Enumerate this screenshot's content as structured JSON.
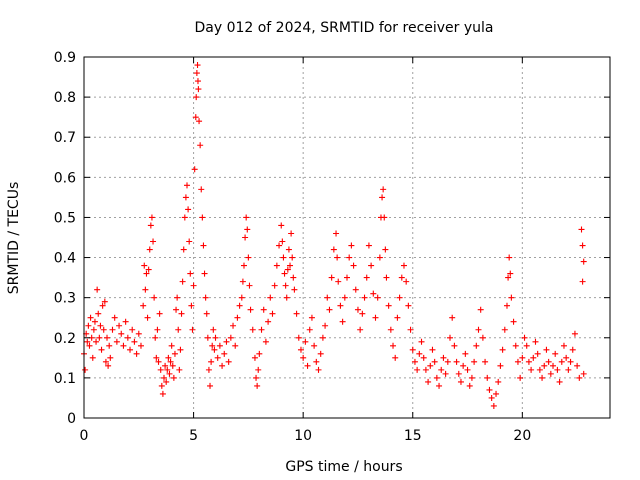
{
  "chart_data": {
    "type": "scatter",
    "title": "Day 012 of 2024, SRMTID for receiver yula",
    "xlabel": "GPS time / hours",
    "ylabel": "SRMTID / TECUs",
    "xlim": [
      0,
      24
    ],
    "ylim": [
      0,
      0.9
    ],
    "xticks": [
      "0",
      "5",
      "10",
      "15",
      "20"
    ],
    "yticks": [
      "0",
      "0.1",
      "0.2",
      "0.3",
      "0.4",
      "0.5",
      "0.6",
      "0.7",
      "0.8",
      "0.9"
    ],
    "grid": true,
    "marker": "plus",
    "color": "#ff0000",
    "series": [
      {
        "name": "SRMTID",
        "points": [
          [
            0.0,
            0.16
          ],
          [
            0.05,
            0.12
          ],
          [
            0.1,
            0.21
          ],
          [
            0.15,
            0.19
          ],
          [
            0.2,
            0.23
          ],
          [
            0.25,
            0.18
          ],
          [
            0.3,
            0.25
          ],
          [
            0.35,
            0.2
          ],
          [
            0.4,
            0.15
          ],
          [
            0.45,
            0.22
          ],
          [
            0.5,
            0.24
          ],
          [
            0.55,
            0.19
          ],
          [
            0.6,
            0.32
          ],
          [
            0.65,
            0.26
          ],
          [
            0.7,
            0.2
          ],
          [
            0.75,
            0.23
          ],
          [
            0.8,
            0.17
          ],
          [
            0.85,
            0.28
          ],
          [
            0.9,
            0.22
          ],
          [
            0.95,
            0.29
          ],
          [
            1.0,
            0.14
          ],
          [
            1.05,
            0.2
          ],
          [
            1.1,
            0.13
          ],
          [
            1.15,
            0.18
          ],
          [
            1.2,
            0.15
          ],
          [
            1.3,
            0.22
          ],
          [
            1.4,
            0.25
          ],
          [
            1.5,
            0.19
          ],
          [
            1.6,
            0.23
          ],
          [
            1.7,
            0.21
          ],
          [
            1.8,
            0.18
          ],
          [
            1.9,
            0.24
          ],
          [
            2.0,
            0.2
          ],
          [
            2.1,
            0.17
          ],
          [
            2.2,
            0.22
          ],
          [
            2.3,
            0.19
          ],
          [
            2.4,
            0.16
          ],
          [
            2.5,
            0.21
          ],
          [
            2.6,
            0.18
          ],
          [
            2.7,
            0.28
          ],
          [
            2.75,
            0.38
          ],
          [
            2.8,
            0.32
          ],
          [
            2.85,
            0.36
          ],
          [
            2.9,
            0.25
          ],
          [
            2.95,
            0.37
          ],
          [
            3.0,
            0.42
          ],
          [
            3.05,
            0.48
          ],
          [
            3.1,
            0.5
          ],
          [
            3.15,
            0.44
          ],
          [
            3.2,
            0.3
          ],
          [
            3.25,
            0.2
          ],
          [
            3.3,
            0.15
          ],
          [
            3.35,
            0.22
          ],
          [
            3.4,
            0.14
          ],
          [
            3.45,
            0.26
          ],
          [
            3.5,
            0.12
          ],
          [
            3.55,
            0.08
          ],
          [
            3.6,
            0.06
          ],
          [
            3.65,
            0.1
          ],
          [
            3.7,
            0.13
          ],
          [
            3.75,
            0.09
          ],
          [
            3.8,
            0.12
          ],
          [
            3.85,
            0.15
          ],
          [
            3.9,
            0.11
          ],
          [
            3.95,
            0.14
          ],
          [
            4.0,
            0.18
          ],
          [
            4.05,
            0.13
          ],
          [
            4.1,
            0.1
          ],
          [
            4.15,
            0.16
          ],
          [
            4.2,
            0.27
          ],
          [
            4.25,
            0.3
          ],
          [
            4.3,
            0.22
          ],
          [
            4.35,
            0.12
          ],
          [
            4.4,
            0.17
          ],
          [
            4.45,
            0.26
          ],
          [
            4.5,
            0.34
          ],
          [
            4.55,
            0.42
          ],
          [
            4.6,
            0.5
          ],
          [
            4.65,
            0.55
          ],
          [
            4.7,
            0.58
          ],
          [
            4.75,
            0.52
          ],
          [
            4.8,
            0.44
          ],
          [
            4.85,
            0.36
          ],
          [
            4.9,
            0.28
          ],
          [
            4.95,
            0.22
          ],
          [
            5.0,
            0.33
          ],
          [
            5.05,
            0.62
          ],
          [
            5.1,
            0.75
          ],
          [
            5.12,
            0.8
          ],
          [
            5.15,
            0.86
          ],
          [
            5.18,
            0.88
          ],
          [
            5.2,
            0.84
          ],
          [
            5.22,
            0.82
          ],
          [
            5.25,
            0.74
          ],
          [
            5.3,
            0.68
          ],
          [
            5.35,
            0.57
          ],
          [
            5.4,
            0.5
          ],
          [
            5.45,
            0.43
          ],
          [
            5.5,
            0.36
          ],
          [
            5.55,
            0.3
          ],
          [
            5.6,
            0.26
          ],
          [
            5.65,
            0.2
          ],
          [
            5.7,
            0.12
          ],
          [
            5.75,
            0.08
          ],
          [
            5.8,
            0.14
          ],
          [
            5.85,
            0.18
          ],
          [
            5.9,
            0.22
          ],
          [
            5.95,
            0.17
          ],
          [
            6.0,
            0.2
          ],
          [
            6.1,
            0.15
          ],
          [
            6.2,
            0.18
          ],
          [
            6.3,
            0.13
          ],
          [
            6.4,
            0.16
          ],
          [
            6.5,
            0.19
          ],
          [
            6.6,
            0.14
          ],
          [
            6.7,
            0.2
          ],
          [
            6.8,
            0.23
          ],
          [
            6.9,
            0.18
          ],
          [
            7.0,
            0.25
          ],
          [
            7.1,
            0.28
          ],
          [
            7.2,
            0.3
          ],
          [
            7.25,
            0.34
          ],
          [
            7.3,
            0.38
          ],
          [
            7.35,
            0.45
          ],
          [
            7.4,
            0.5
          ],
          [
            7.45,
            0.47
          ],
          [
            7.5,
            0.4
          ],
          [
            7.55,
            0.33
          ],
          [
            7.6,
            0.27
          ],
          [
            7.7,
            0.22
          ],
          [
            7.8,
            0.15
          ],
          [
            7.85,
            0.1
          ],
          [
            7.9,
            0.08
          ],
          [
            7.95,
            0.12
          ],
          [
            8.0,
            0.16
          ],
          [
            8.1,
            0.22
          ],
          [
            8.2,
            0.27
          ],
          [
            8.3,
            0.19
          ],
          [
            8.4,
            0.24
          ],
          [
            8.5,
            0.3
          ],
          [
            8.6,
            0.26
          ],
          [
            8.7,
            0.33
          ],
          [
            8.8,
            0.38
          ],
          [
            8.9,
            0.43
          ],
          [
            9.0,
            0.48
          ],
          [
            9.05,
            0.44
          ],
          [
            9.1,
            0.4
          ],
          [
            9.15,
            0.36
          ],
          [
            9.2,
            0.33
          ],
          [
            9.25,
            0.3
          ],
          [
            9.3,
            0.37
          ],
          [
            9.35,
            0.42
          ],
          [
            9.4,
            0.38
          ],
          [
            9.45,
            0.46
          ],
          [
            9.5,
            0.4
          ],
          [
            9.55,
            0.35
          ],
          [
            9.6,
            0.32
          ],
          [
            9.7,
            0.26
          ],
          [
            9.8,
            0.2
          ],
          [
            9.9,
            0.17
          ],
          [
            10.0,
            0.15
          ],
          [
            10.1,
            0.19
          ],
          [
            10.2,
            0.13
          ],
          [
            10.3,
            0.22
          ],
          [
            10.4,
            0.25
          ],
          [
            10.5,
            0.18
          ],
          [
            10.6,
            0.14
          ],
          [
            10.7,
            0.12
          ],
          [
            10.8,
            0.16
          ],
          [
            10.9,
            0.2
          ],
          [
            11.0,
            0.23
          ],
          [
            11.1,
            0.3
          ],
          [
            11.2,
            0.27
          ],
          [
            11.3,
            0.35
          ],
          [
            11.4,
            0.42
          ],
          [
            11.5,
            0.46
          ],
          [
            11.55,
            0.4
          ],
          [
            11.6,
            0.34
          ],
          [
            11.7,
            0.28
          ],
          [
            11.8,
            0.24
          ],
          [
            11.9,
            0.3
          ],
          [
            12.0,
            0.35
          ],
          [
            12.1,
            0.4
          ],
          [
            12.2,
            0.43
          ],
          [
            12.3,
            0.38
          ],
          [
            12.4,
            0.32
          ],
          [
            12.5,
            0.27
          ],
          [
            12.6,
            0.22
          ],
          [
            12.7,
            0.26
          ],
          [
            12.8,
            0.3
          ],
          [
            12.9,
            0.35
          ],
          [
            13.0,
            0.43
          ],
          [
            13.1,
            0.38
          ],
          [
            13.2,
            0.31
          ],
          [
            13.3,
            0.25
          ],
          [
            13.4,
            0.3
          ],
          [
            13.5,
            0.4
          ],
          [
            13.55,
            0.5
          ],
          [
            13.6,
            0.55
          ],
          [
            13.65,
            0.57
          ],
          [
            13.7,
            0.5
          ],
          [
            13.75,
            0.42
          ],
          [
            13.8,
            0.35
          ],
          [
            13.9,
            0.28
          ],
          [
            14.0,
            0.22
          ],
          [
            14.1,
            0.18
          ],
          [
            14.2,
            0.15
          ],
          [
            14.3,
            0.25
          ],
          [
            14.4,
            0.3
          ],
          [
            14.5,
            0.35
          ],
          [
            14.6,
            0.38
          ],
          [
            14.7,
            0.34
          ],
          [
            14.8,
            0.28
          ],
          [
            14.9,
            0.22
          ],
          [
            15.0,
            0.17
          ],
          [
            15.1,
            0.14
          ],
          [
            15.2,
            0.12
          ],
          [
            15.3,
            0.16
          ],
          [
            15.4,
            0.19
          ],
          [
            15.5,
            0.15
          ],
          [
            15.6,
            0.12
          ],
          [
            15.7,
            0.09
          ],
          [
            15.8,
            0.13
          ],
          [
            15.9,
            0.17
          ],
          [
            16.0,
            0.14
          ],
          [
            16.1,
            0.1
          ],
          [
            16.2,
            0.08
          ],
          [
            16.3,
            0.12
          ],
          [
            16.4,
            0.15
          ],
          [
            16.5,
            0.11
          ],
          [
            16.6,
            0.14
          ],
          [
            16.7,
            0.2
          ],
          [
            16.8,
            0.25
          ],
          [
            16.9,
            0.18
          ],
          [
            17.0,
            0.14
          ],
          [
            17.1,
            0.11
          ],
          [
            17.2,
            0.09
          ],
          [
            17.3,
            0.13
          ],
          [
            17.4,
            0.16
          ],
          [
            17.5,
            0.12
          ],
          [
            17.6,
            0.08
          ],
          [
            17.7,
            0.1
          ],
          [
            17.8,
            0.14
          ],
          [
            17.9,
            0.18
          ],
          [
            18.0,
            0.22
          ],
          [
            18.1,
            0.27
          ],
          [
            18.2,
            0.2
          ],
          [
            18.3,
            0.14
          ],
          [
            18.4,
            0.1
          ],
          [
            18.5,
            0.07
          ],
          [
            18.6,
            0.05
          ],
          [
            18.7,
            0.03
          ],
          [
            18.8,
            0.06
          ],
          [
            18.9,
            0.09
          ],
          [
            19.0,
            0.13
          ],
          [
            19.1,
            0.17
          ],
          [
            19.2,
            0.22
          ],
          [
            19.3,
            0.28
          ],
          [
            19.35,
            0.35
          ],
          [
            19.4,
            0.4
          ],
          [
            19.45,
            0.36
          ],
          [
            19.5,
            0.3
          ],
          [
            19.6,
            0.24
          ],
          [
            19.7,
            0.18
          ],
          [
            19.8,
            0.14
          ],
          [
            19.9,
            0.1
          ],
          [
            20.0,
            0.15
          ],
          [
            20.1,
            0.2
          ],
          [
            20.2,
            0.18
          ],
          [
            20.3,
            0.14
          ],
          [
            20.4,
            0.12
          ],
          [
            20.5,
            0.15
          ],
          [
            20.6,
            0.19
          ],
          [
            20.7,
            0.16
          ],
          [
            20.8,
            0.12
          ],
          [
            20.9,
            0.1
          ],
          [
            21.0,
            0.13
          ],
          [
            21.1,
            0.17
          ],
          [
            21.2,
            0.14
          ],
          [
            21.3,
            0.11
          ],
          [
            21.4,
            0.13
          ],
          [
            21.5,
            0.16
          ],
          [
            21.6,
            0.12
          ],
          [
            21.7,
            0.09
          ],
          [
            21.8,
            0.14
          ],
          [
            21.9,
            0.18
          ],
          [
            22.0,
            0.15
          ],
          [
            22.1,
            0.12
          ],
          [
            22.2,
            0.14
          ],
          [
            22.3,
            0.17
          ],
          [
            22.4,
            0.21
          ],
          [
            22.5,
            0.13
          ],
          [
            22.6,
            0.1
          ],
          [
            22.7,
            0.47
          ],
          [
            22.75,
            0.43
          ],
          [
            22.8,
            0.39
          ],
          [
            22.75,
            0.34
          ],
          [
            22.8,
            0.11
          ]
        ]
      }
    ]
  }
}
